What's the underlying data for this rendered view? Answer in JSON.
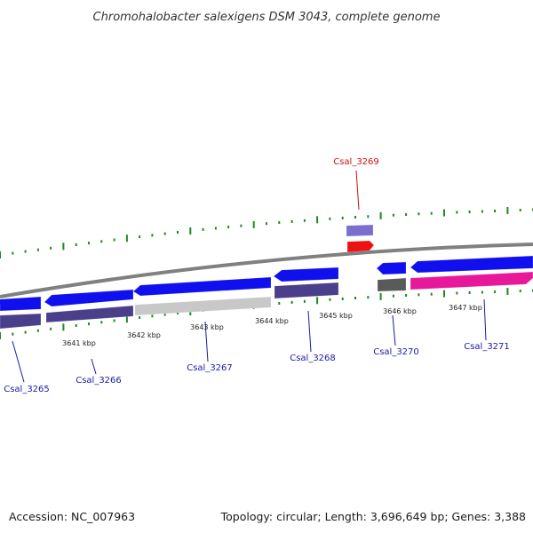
{
  "title": "Chromohalobacter salexigens DSM 3043, complete genome",
  "footer": {
    "accession": "Accession: NC_007963",
    "summary": "Topology: circular; Length: 3,696,649 bp; Genes: 3,388"
  },
  "colors": {
    "background": "#ffffff",
    "backbone": "#808080",
    "forward_cds": "#1010ee",
    "reverse_cds": "#1010ee",
    "selected_gene": "#e8189a",
    "red_feature": "#ee1111",
    "grey_cds": "#c8c8c8",
    "dark_grey_cds": "#5a5a5a",
    "cog_purple": "#4a3f8a",
    "cog_light_purple": "#7a6fcf",
    "tick_green": "#1e8a1e",
    "label_blue": "#1a1aa8",
    "label_red": "#cc1111"
  },
  "axis": {
    "kbp_ticks": [
      {
        "label": "3641 kbp"
      },
      {
        "label": "3642 kbp"
      },
      {
        "label": "3643 kbp"
      },
      {
        "label": "3644 kbp"
      },
      {
        "label": "3645 kbp"
      },
      {
        "label": "3646 kbp"
      },
      {
        "label": "3647 kbp"
      }
    ]
  },
  "genes": [
    {
      "id": "Csal_3265",
      "strand": "forward",
      "color_key": "forward_cds"
    },
    {
      "id": "Csal_3266",
      "strand": "reverse",
      "color_key": "reverse_cds"
    },
    {
      "id": "Csal_3267",
      "strand": "reverse",
      "color_key": "reverse_cds"
    },
    {
      "id": "Csal_3268",
      "strand": "reverse",
      "color_key": "reverse_cds"
    },
    {
      "id": "Csal_3269",
      "strand": "forward",
      "color_key": "red_feature"
    },
    {
      "id": "Csal_3270",
      "strand": "reverse",
      "color_key": "reverse_cds"
    },
    {
      "id": "Csal_3271",
      "strand": "forward",
      "color_key": "selected_gene"
    }
  ]
}
